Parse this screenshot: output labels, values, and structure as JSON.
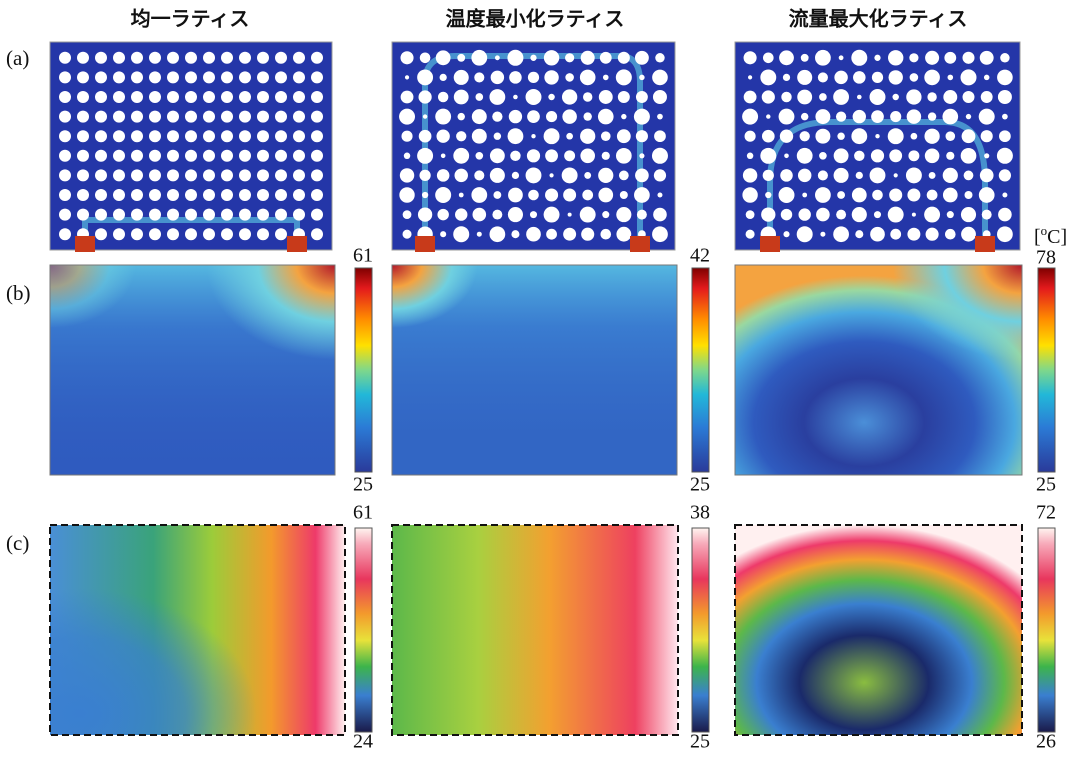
{
  "column_titles": [
    "均一ラティス",
    "温度最小化ラティス",
    "流量最大化ラティス"
  ],
  "row_labels": [
    "(a)",
    "(b)",
    "(c)"
  ],
  "unit": {
    "open": "[",
    "sup": "o",
    "close": "C]"
  },
  "colorbars_b": [
    {
      "max": 61,
      "min": 25
    },
    {
      "max": 42,
      "min": 25
    },
    {
      "max": 78,
      "min": 25
    }
  ],
  "colorbars_c": [
    {
      "max": 61,
      "min": 24
    },
    {
      "max": 38,
      "min": 25
    },
    {
      "max": 72,
      "min": 26
    }
  ]
}
